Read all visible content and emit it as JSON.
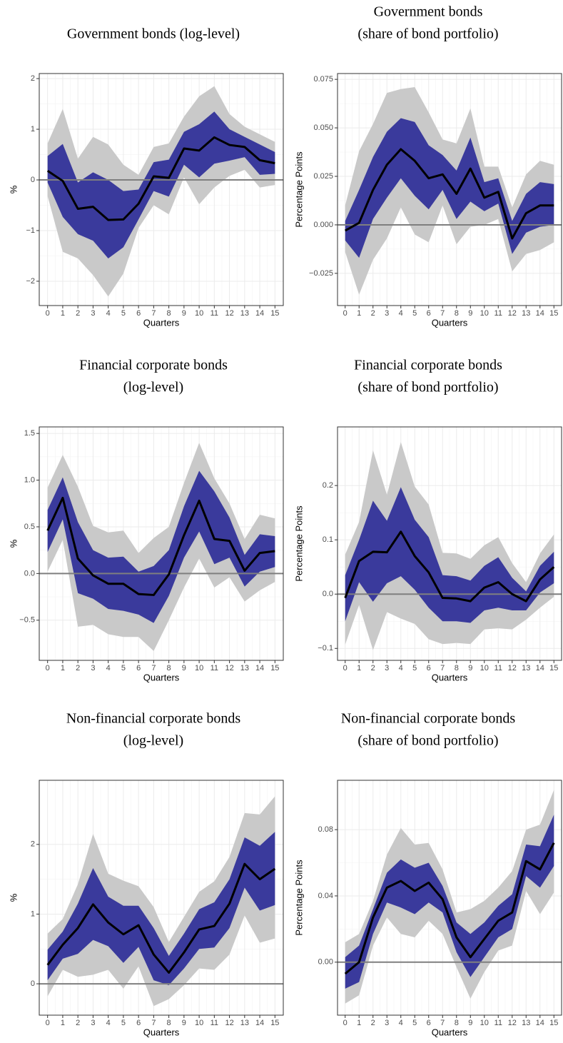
{
  "chart_data": [
    {
      "type": "line",
      "title": [
        "Government bonds (log-level)"
      ],
      "xlabel": "Quarters",
      "ylabel": "%",
      "x": [
        0,
        1,
        2,
        3,
        4,
        5,
        6,
        7,
        8,
        9,
        10,
        11,
        12,
        13,
        14,
        15
      ],
      "xlim": [
        -0.55,
        15.55
      ],
      "xticks": [
        0,
        1,
        2,
        3,
        4,
        5,
        6,
        7,
        8,
        9,
        10,
        11,
        12,
        13,
        14,
        15
      ],
      "ylim": [
        -2.48,
        2.1
      ],
      "yticks": [
        {
          "value": -2,
          "label": "−2"
        },
        {
          "value": -1,
          "label": "−1"
        },
        0,
        1,
        2
      ],
      "grid": true,
      "reference_line": 0,
      "bands": [
        {
          "color": "#c9c9c9",
          "lower": [
            -0.32,
            -1.42,
            -1.55,
            -1.88,
            -2.3,
            -1.85,
            -0.95,
            -0.5,
            -0.68,
            0.05,
            -0.48,
            -0.15,
            0.08,
            0.2,
            -0.15,
            -0.1
          ],
          "upper": [
            0.72,
            1.4,
            0.42,
            0.85,
            0.7,
            0.3,
            0.1,
            0.65,
            0.72,
            1.25,
            1.65,
            1.85,
            1.3,
            1.05,
            0.9,
            0.75
          ]
        },
        {
          "color": "#3a3a9c",
          "lower": [
            -0.05,
            -0.73,
            -1.07,
            -1.2,
            -1.55,
            -1.33,
            -0.78,
            -0.22,
            -0.33,
            0.3,
            0.05,
            0.32,
            0.38,
            0.45,
            0.1,
            0.12
          ],
          "upper": [
            0.47,
            0.71,
            -0.05,
            0.15,
            0.0,
            -0.22,
            -0.19,
            0.35,
            0.4,
            0.95,
            1.1,
            1.35,
            1.0,
            0.85,
            0.7,
            0.55
          ]
        }
      ],
      "series": [
        {
          "color": "#000000",
          "values": [
            0.18,
            -0.02,
            -0.57,
            -0.53,
            -0.79,
            -0.78,
            -0.47,
            0.07,
            0.04,
            0.62,
            0.58,
            0.84,
            0.69,
            0.65,
            0.39,
            0.33
          ]
        }
      ]
    },
    {
      "type": "line",
      "title": [
        "Government bonds",
        "(share of bond portfolio)"
      ],
      "xlabel": "Quarters",
      "ylabel": "Percentage Points",
      "x": [
        0,
        1,
        2,
        3,
        4,
        5,
        6,
        7,
        8,
        9,
        10,
        11,
        12,
        13,
        14,
        15
      ],
      "xlim": [
        -0.55,
        15.55
      ],
      "xticks": [
        0,
        1,
        2,
        3,
        4,
        5,
        6,
        7,
        8,
        9,
        10,
        11,
        12,
        13,
        14,
        15
      ],
      "ylim": [
        -0.0416,
        0.078
      ],
      "yticks": [
        {
          "value": -0.025,
          "label": "−0.025"
        },
        {
          "value": 0,
          "label": "0.000"
        },
        0.025,
        {
          "value": 0.05,
          "label": "0.050"
        },
        0.075
      ],
      "grid": true,
      "reference_line": 0,
      "bands": [
        {
          "color": "#c9c9c9",
          "lower": [
            -0.014,
            -0.036,
            -0.018,
            -0.007,
            0.009,
            -0.005,
            -0.009,
            0.01,
            -0.01,
            -0.001,
            0.0,
            0.003,
            -0.024,
            -0.015,
            -0.013,
            -0.009
          ],
          "upper": [
            0.01,
            0.038,
            0.052,
            0.068,
            0.07,
            0.071,
            0.058,
            0.044,
            0.042,
            0.06,
            0.03,
            0.03,
            0.009,
            0.026,
            0.033,
            0.031
          ]
        },
        {
          "color": "#3a3a9c",
          "lower": [
            -0.008,
            -0.017,
            0.003,
            0.014,
            0.024,
            0.015,
            0.008,
            0.018,
            0.003,
            0.012,
            0.007,
            0.011,
            -0.015,
            -0.004,
            -0.001,
            0.0
          ],
          "upper": [
            0.002,
            0.018,
            0.035,
            0.048,
            0.055,
            0.053,
            0.041,
            0.036,
            0.028,
            0.045,
            0.022,
            0.024,
            0.002,
            0.016,
            0.022,
            0.021
          ]
        }
      ],
      "series": [
        {
          "color": "#000000",
          "values": [
            -0.003,
            0.001,
            0.018,
            0.031,
            0.039,
            0.033,
            0.024,
            0.026,
            0.016,
            0.029,
            0.014,
            0.017,
            -0.007,
            0.006,
            0.01,
            0.01
          ]
        }
      ]
    },
    {
      "type": "line",
      "title": [
        "Financial corporate bonds",
        "(log-level)"
      ],
      "xlabel": "Quarters",
      "ylabel": "%",
      "x": [
        0,
        1,
        2,
        3,
        4,
        5,
        6,
        7,
        8,
        9,
        10,
        11,
        12,
        13,
        14,
        15
      ],
      "xlim": [
        -0.55,
        15.55
      ],
      "xticks": [
        0,
        1,
        2,
        3,
        4,
        5,
        6,
        7,
        8,
        9,
        10,
        11,
        12,
        13,
        14,
        15
      ],
      "ylim": [
        -0.93,
        1.57
      ],
      "yticks": [
        {
          "value": -0.5,
          "label": "−0.5"
        },
        {
          "value": 0,
          "label": "0.0"
        },
        0.5,
        {
          "value": 1,
          "label": "1.0"
        },
        1.5
      ],
      "grid": true,
      "reference_line": 0,
      "bands": [
        {
          "color": "#c9c9c9",
          "lower": [
            0.02,
            0.36,
            -0.57,
            -0.55,
            -0.65,
            -0.68,
            -0.68,
            -0.83,
            -0.5,
            -0.15,
            0.16,
            -0.15,
            -0.04,
            -0.3,
            -0.18,
            -0.09
          ],
          "upper": [
            0.92,
            1.27,
            0.93,
            0.51,
            0.44,
            0.46,
            0.22,
            0.38,
            0.5,
            0.97,
            1.4,
            1.02,
            0.75,
            0.37,
            0.63,
            0.59
          ]
        },
        {
          "color": "#3a3a9c",
          "lower": [
            0.23,
            0.58,
            -0.21,
            -0.27,
            -0.38,
            -0.4,
            -0.44,
            -0.53,
            -0.24,
            0.17,
            0.45,
            0.1,
            0.17,
            -0.14,
            0.02,
            0.07
          ],
          "upper": [
            0.68,
            1.03,
            0.55,
            0.25,
            0.17,
            0.18,
            0.02,
            0.08,
            0.25,
            0.72,
            1.1,
            0.88,
            0.6,
            0.2,
            0.42,
            0.4
          ]
        }
      ],
      "series": [
        {
          "color": "#000000",
          "values": [
            0.46,
            0.81,
            0.16,
            -0.02,
            -0.11,
            -0.11,
            -0.22,
            -0.23,
            -0.01,
            0.41,
            0.78,
            0.37,
            0.35,
            0.03,
            0.22,
            0.24
          ]
        }
      ]
    },
    {
      "type": "line",
      "title": [
        "Financial corporate bonds",
        "(share of bond portfolio)"
      ],
      "xlabel": "Quarters",
      "ylabel": "Percentage Points",
      "x": [
        0,
        1,
        2,
        3,
        4,
        5,
        6,
        7,
        8,
        9,
        10,
        11,
        12,
        13,
        14,
        15
      ],
      "xlim": [
        -0.55,
        15.55
      ],
      "xticks": [
        0,
        1,
        2,
        3,
        4,
        5,
        6,
        7,
        8,
        9,
        10,
        11,
        12,
        13,
        14,
        15
      ],
      "ylim": [
        -0.122,
        0.308
      ],
      "yticks": [
        {
          "value": -0.1,
          "label": "−0.1"
        },
        {
          "value": 0,
          "label": "0.0"
        },
        0.1,
        0.2
      ],
      "grid": true,
      "reference_line": 0,
      "bands": [
        {
          "color": "#c9c9c9",
          "lower": [
            -0.093,
            -0.02,
            -0.103,
            -0.033,
            -0.045,
            -0.055,
            -0.083,
            -0.092,
            -0.09,
            -0.092,
            -0.065,
            -0.063,
            -0.065,
            -0.047,
            -0.025,
            -0.005
          ],
          "upper": [
            0.073,
            0.133,
            0.265,
            0.183,
            0.28,
            0.198,
            0.165,
            0.076,
            0.075,
            0.065,
            0.09,
            0.105,
            0.057,
            0.022,
            0.075,
            0.11
          ]
        },
        {
          "color": "#3a3a9c",
          "lower": [
            -0.05,
            0.022,
            -0.014,
            0.02,
            0.033,
            0.008,
            -0.025,
            -0.05,
            -0.05,
            -0.053,
            -0.03,
            -0.025,
            -0.03,
            -0.03,
            0.003,
            0.02
          ],
          "upper": [
            0.035,
            0.1,
            0.172,
            0.135,
            0.197,
            0.137,
            0.105,
            0.035,
            0.033,
            0.025,
            0.052,
            0.068,
            0.03,
            0.005,
            0.052,
            0.078
          ]
        }
      ],
      "series": [
        {
          "color": "#000000",
          "values": [
            -0.007,
            0.061,
            0.078,
            0.077,
            0.115,
            0.07,
            0.04,
            -0.007,
            -0.008,
            -0.013,
            0.012,
            0.022,
            0.0,
            -0.013,
            0.027,
            0.05
          ]
        }
      ]
    },
    {
      "type": "line",
      "title": [
        "Non-financial corporate bonds",
        "(log-level)"
      ],
      "xlabel": "Quarters",
      "ylabel": "%",
      "x": [
        0,
        1,
        2,
        3,
        4,
        5,
        6,
        7,
        8,
        9,
        10,
        11,
        12,
        13,
        14,
        15
      ],
      "xlim": [
        -0.55,
        15.55
      ],
      "xticks": [
        0,
        1,
        2,
        3,
        4,
        5,
        6,
        7,
        8,
        9,
        10,
        11,
        12,
        13,
        14,
        15
      ],
      "ylim": [
        -0.45,
        2.92
      ],
      "yticks": [
        0,
        1,
        2
      ],
      "grid": true,
      "reference_line": 0,
      "bands": [
        {
          "color": "#c9c9c9",
          "lower": [
            -0.18,
            0.2,
            0.1,
            0.13,
            0.2,
            -0.07,
            0.25,
            -0.32,
            -0.22,
            -0.02,
            0.22,
            0.2,
            0.42,
            0.98,
            0.59,
            0.65
          ],
          "upper": [
            0.72,
            0.93,
            1.43,
            2.15,
            1.58,
            1.48,
            1.4,
            1.1,
            0.6,
            0.96,
            1.32,
            1.47,
            1.82,
            2.45,
            2.43,
            2.69
          ]
        },
        {
          "color": "#3a3a9c",
          "lower": [
            0.05,
            0.36,
            0.43,
            0.63,
            0.54,
            0.3,
            0.53,
            0.05,
            -0.02,
            0.22,
            0.5,
            0.52,
            0.8,
            1.38,
            1.05,
            1.13
          ],
          "upper": [
            0.49,
            0.75,
            1.15,
            1.66,
            1.25,
            1.12,
            1.12,
            0.8,
            0.4,
            0.72,
            1.07,
            1.17,
            1.5,
            2.1,
            1.98,
            2.18
          ]
        }
      ],
      "series": [
        {
          "color": "#000000",
          "values": [
            0.27,
            0.56,
            0.8,
            1.14,
            0.88,
            0.71,
            0.84,
            0.42,
            0.16,
            0.45,
            0.78,
            0.83,
            1.15,
            1.72,
            1.5,
            1.65
          ]
        }
      ]
    },
    {
      "type": "line",
      "title": [
        "Non-financial corporate bonds",
        "(share of bond portfolio)"
      ],
      "xlabel": "Quarters",
      "ylabel": "Percentage Points",
      "x": [
        0,
        1,
        2,
        3,
        4,
        5,
        6,
        7,
        8,
        9,
        10,
        11,
        12,
        13,
        14,
        15
      ],
      "xlim": [
        -0.55,
        15.55
      ],
      "xticks": [
        0,
        1,
        2,
        3,
        4,
        5,
        6,
        7,
        8,
        9,
        10,
        11,
        12,
        13,
        14,
        15
      ],
      "ylim": [
        -0.032,
        0.1098
      ],
      "yticks": [
        {
          "value": 0,
          "label": "0.00"
        },
        0.04,
        0.08
      ],
      "grid": true,
      "reference_line": 0,
      "bands": [
        {
          "color": "#c9c9c9",
          "lower": [
            -0.025,
            -0.02,
            0.01,
            0.027,
            0.017,
            0.015,
            0.025,
            0.017,
            -0.003,
            -0.022,
            -0.006,
            0.007,
            0.01,
            0.043,
            0.029,
            0.042
          ],
          "upper": [
            0.012,
            0.017,
            0.037,
            0.065,
            0.081,
            0.071,
            0.072,
            0.056,
            0.03,
            0.032,
            0.037,
            0.045,
            0.055,
            0.08,
            0.083,
            0.104
          ]
        },
        {
          "color": "#3a3a9c",
          "lower": [
            -0.016,
            -0.012,
            0.017,
            0.036,
            0.033,
            0.029,
            0.036,
            0.03,
            0.006,
            -0.009,
            0.003,
            0.015,
            0.02,
            0.052,
            0.045,
            0.058
          ],
          "upper": [
            0.003,
            0.01,
            0.032,
            0.054,
            0.062,
            0.057,
            0.06,
            0.046,
            0.024,
            0.017,
            0.024,
            0.034,
            0.041,
            0.071,
            0.07,
            0.089
          ]
        }
      ],
      "series": [
        {
          "color": "#000000",
          "values": [
            -0.007,
            0.0,
            0.027,
            0.045,
            0.049,
            0.043,
            0.048,
            0.038,
            0.015,
            0.003,
            0.014,
            0.025,
            0.03,
            0.061,
            0.056,
            0.072
          ]
        }
      ]
    }
  ]
}
